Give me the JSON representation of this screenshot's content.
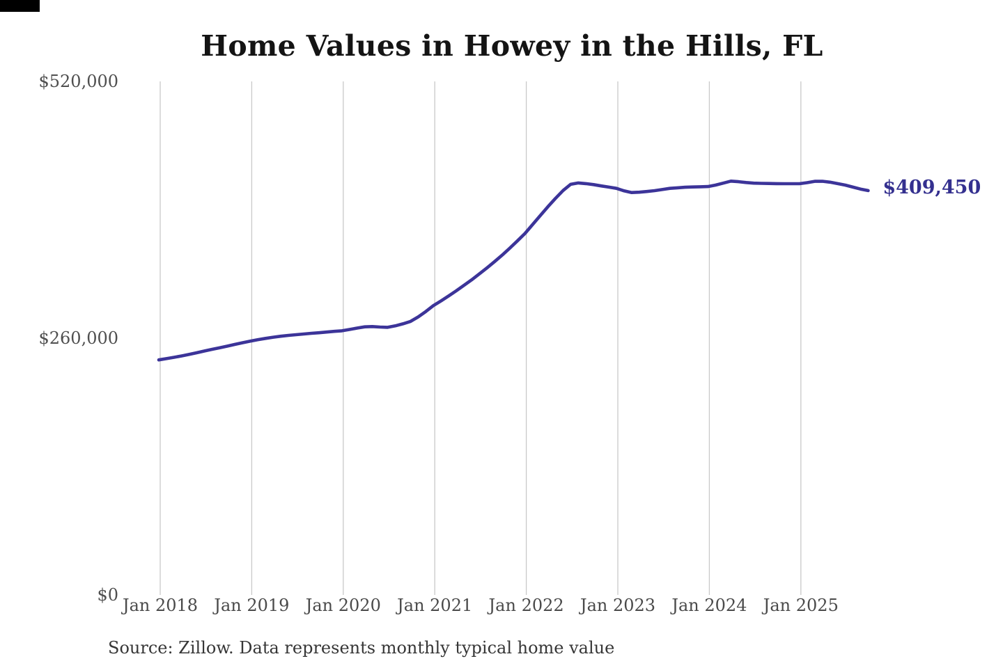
{
  "page": {
    "background": "#ffffff",
    "artifact_bar_color": "#000000"
  },
  "chart": {
    "title": "Home Values in Howey in the Hills, FL",
    "source": "Source: Zillow. Data represents monthly typical home value",
    "end_label": "$409,450",
    "colors": {
      "line": "#3c3499",
      "end_label": "#34308f",
      "gridline": "#c9c9c9",
      "axis_text": "#4f4f4f",
      "title_text": "#141414",
      "source_text": "#363636"
    }
  },
  "chart_data": {
    "type": "line",
    "title": "Home Values in Howey in the Hills, FL",
    "xlabel": "",
    "ylabel": "",
    "ylim": [
      0,
      520000
    ],
    "y_ticks": [
      0,
      260000,
      520000
    ],
    "y_tick_labels": [
      "$0",
      "$260,000",
      "$520,000"
    ],
    "x_tick_labels": [
      "Jan 2018",
      "Jan 2019",
      "Jan 2020",
      "Jan 2021",
      "Jan 2022",
      "Jan 2023",
      "Jan 2024",
      "Jan 2025"
    ],
    "x_start_month": "2018-01",
    "x_end_month": "2025-10",
    "grid": "vertical-only",
    "legend": "none",
    "end_value": 409450,
    "end_value_label": "$409,450",
    "series": [
      {
        "name": "Monthly typical home value",
        "values": [
          238000,
          239300,
          240600,
          242000,
          243600,
          245300,
          247000,
          248700,
          250300,
          252000,
          253700,
          255400,
          257000,
          258500,
          259800,
          261000,
          262000,
          262800,
          263500,
          264200,
          264900,
          265500,
          266200,
          266900,
          267500,
          268800,
          270200,
          271500,
          271800,
          271300,
          271000,
          272500,
          274500,
          277000,
          281500,
          287000,
          293000,
          297800,
          302800,
          308000,
          313500,
          319000,
          325000,
          331000,
          337400,
          344000,
          351000,
          358400,
          366000,
          375000,
          384000,
          393000,
          401500,
          409500,
          415800,
          417200,
          416500,
          415500,
          414200,
          413000,
          411700,
          409200,
          407500,
          407800,
          408500,
          409400,
          410500,
          411700,
          412300,
          412800,
          413100,
          413300,
          413500,
          415000,
          417000,
          419000,
          418500,
          417600,
          417000,
          416800,
          416600,
          416500,
          416400,
          416400,
          416400,
          417500,
          418800,
          418900,
          418000,
          416500,
          415000,
          413000,
          411000,
          409450
        ]
      }
    ]
  }
}
